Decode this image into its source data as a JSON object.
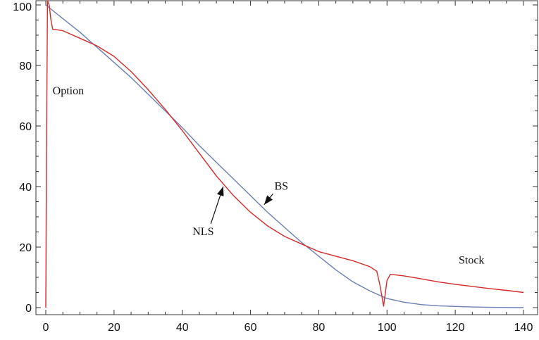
{
  "chart_data": {
    "type": "line",
    "title": "",
    "xlabel": "",
    "ylabel": "",
    "xlim": [
      0,
      140
    ],
    "ylim": [
      0,
      100
    ],
    "xticks": [
      0,
      20,
      40,
      60,
      80,
      100,
      120,
      140
    ],
    "yticks": [
      0,
      20,
      40,
      60,
      80,
      100
    ],
    "grid": false,
    "colors": {
      "BS": "#6a7fb5",
      "NLS": "#d62a2a",
      "frame": "#333333"
    },
    "series": [
      {
        "name": "BS",
        "x": [
          0,
          5,
          10,
          15,
          20,
          25,
          30,
          35,
          40,
          45,
          50,
          55,
          60,
          65,
          70,
          75,
          80,
          85,
          90,
          95,
          100,
          105,
          110,
          115,
          120,
          125,
          130,
          135,
          140
        ],
        "y": [
          100,
          95.5,
          91,
          86,
          81,
          76,
          70.5,
          65,
          59.5,
          53.5,
          48,
          42.5,
          37,
          31.5,
          26.5,
          21.5,
          17,
          12.5,
          8.5,
          5.5,
          3,
          1.8,
          1,
          0.6,
          0.4,
          0.2,
          0.1,
          0.05,
          0
        ]
      },
      {
        "name": "NLS",
        "x": [
          0,
          0.2,
          0.5,
          1,
          1.5,
          2,
          5,
          10,
          15,
          20,
          25,
          30,
          35,
          40,
          45,
          50,
          55,
          60,
          65,
          70,
          75,
          80,
          85,
          90,
          95,
          97,
          98,
          99,
          100,
          101,
          105,
          110,
          115,
          120,
          125,
          130,
          135,
          140
        ],
        "y": [
          0,
          50,
          102,
          100,
          95,
          92,
          91.5,
          89,
          86.5,
          83,
          78,
          72,
          65.5,
          58.5,
          51,
          43.5,
          37,
          31.5,
          27,
          23.5,
          21,
          18.5,
          17,
          15.5,
          13.5,
          12,
          7,
          0.5,
          9,
          11,
          10.5,
          9.5,
          8.5,
          7.7,
          7,
          6.3,
          5.7,
          5
        ]
      }
    ],
    "annotations": [
      {
        "text": "Option",
        "x": 2,
        "y": 70.5
      },
      {
        "text": "Stock",
        "x": 121,
        "y": 14.5
      },
      {
        "text": "BS",
        "x": 67,
        "y": 39,
        "arrow_to": [
          64,
          34
        ]
      },
      {
        "text": "NLS",
        "x": 43,
        "y": 24,
        "arrow_to": [
          52,
          40
        ]
      }
    ]
  }
}
